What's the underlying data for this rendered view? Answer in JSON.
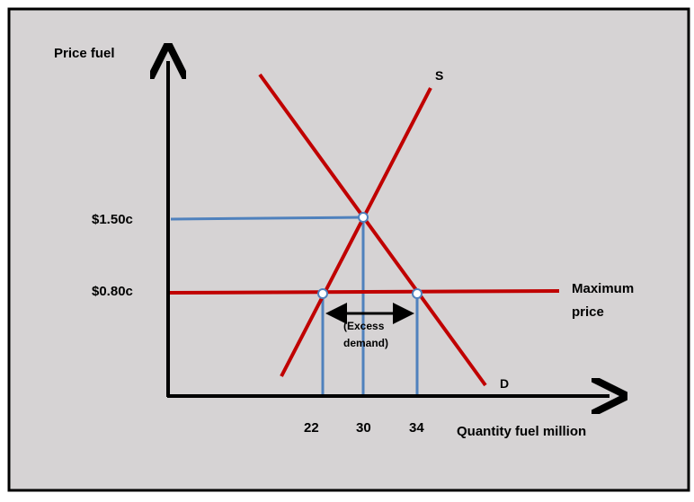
{
  "diagram": {
    "y_axis_label": "Price fuel",
    "x_axis_label": "Quantity fuel million",
    "supply_label": "S",
    "demand_label": "D",
    "max_price_label_line1": "Maximum",
    "max_price_label_line2": "price",
    "price_high_label": "$1.50c",
    "price_low_label": "$0.80c",
    "qty_22_label": "22",
    "qty_30_label": "30",
    "qty_34_label": "34",
    "excess_line1": "(Excess",
    "excess_line2": "demand)"
  },
  "colors": {
    "background": "#d6d3d4",
    "border": "#000000",
    "curve": "#c00000",
    "guide": "#4f81bd",
    "axis": "#000000"
  }
}
